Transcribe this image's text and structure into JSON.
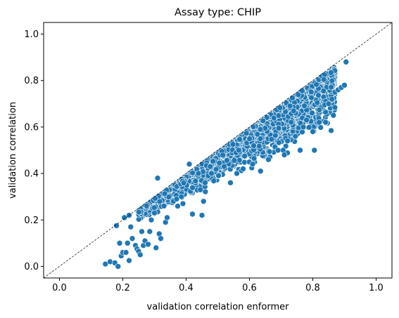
{
  "chart_data": {
    "type": "scatter",
    "title": "Assay type: CHIP",
    "xlabel": "validation correlation enformer",
    "ylabel": "validation correlation",
    "xlim": [
      -0.05,
      1.05
    ],
    "ylim": [
      -0.05,
      1.05
    ],
    "xticks": [
      "0.0",
      "0.2",
      "0.4",
      "0.6",
      "0.8",
      "1.0"
    ],
    "yticks": [
      "0.0",
      "0.2",
      "0.4",
      "0.6",
      "0.8",
      "1.0"
    ],
    "diagonal_reference_line": true,
    "grid": false,
    "marker_color": "#1f77b4",
    "series": [
      {
        "points": [
          [
            0.145,
            0.01
          ],
          [
            0.16,
            0.02
          ],
          [
            0.175,
            0.015
          ],
          [
            0.18,
            0.175
          ],
          [
            0.185,
            0.0
          ],
          [
            0.19,
            0.1
          ],
          [
            0.195,
            0.045
          ],
          [
            0.2,
            0.06
          ],
          [
            0.205,
            0.21
          ],
          [
            0.21,
            0.06
          ],
          [
            0.215,
            0.1
          ],
          [
            0.22,
            0.025
          ],
          [
            0.22,
            0.22
          ],
          [
            0.225,
            0.17
          ],
          [
            0.23,
            0.12
          ],
          [
            0.24,
            0.09
          ],
          [
            0.245,
            0.075
          ],
          [
            0.25,
            0.065
          ],
          [
            0.255,
            0.05
          ],
          [
            0.26,
            0.15
          ],
          [
            0.265,
            0.09
          ],
          [
            0.27,
            0.11
          ],
          [
            0.275,
            0.26
          ],
          [
            0.28,
            0.095
          ],
          [
            0.285,
            0.15
          ],
          [
            0.29,
            0.2
          ],
          [
            0.3,
            0.23
          ],
          [
            0.305,
            0.08
          ],
          [
            0.31,
            0.38
          ],
          [
            0.315,
            0.14
          ],
          [
            0.32,
            0.12
          ],
          [
            0.33,
            0.26
          ],
          [
            0.335,
            0.19
          ],
          [
            0.34,
            0.21
          ],
          [
            0.36,
            0.28
          ],
          [
            0.37,
            0.29
          ],
          [
            0.385,
            0.3
          ],
          [
            0.39,
            0.27
          ],
          [
            0.41,
            0.44
          ],
          [
            0.42,
            0.225
          ],
          [
            0.445,
            0.33
          ],
          [
            0.45,
            0.22
          ],
          [
            0.455,
            0.28
          ],
          [
            0.46,
            0.36
          ],
          [
            0.47,
            0.39
          ],
          [
            0.48,
            0.4
          ],
          [
            0.505,
            0.445
          ],
          [
            0.52,
            0.43
          ],
          [
            0.54,
            0.36
          ],
          [
            0.56,
            0.4
          ],
          [
            0.58,
            0.42
          ],
          [
            0.61,
            0.44
          ],
          [
            0.635,
            0.41
          ],
          [
            0.66,
            0.46
          ],
          [
            0.69,
            0.5
          ],
          [
            0.71,
            0.48
          ],
          [
            0.72,
            0.54
          ],
          [
            0.745,
            0.56
          ],
          [
            0.76,
            0.5
          ],
          [
            0.77,
            0.6
          ],
          [
            0.8,
            0.58
          ],
          [
            0.805,
            0.5
          ],
          [
            0.82,
            0.62
          ],
          [
            0.85,
            0.7
          ],
          [
            0.87,
            0.75
          ],
          [
            0.88,
            0.76
          ],
          [
            0.89,
            0.77
          ],
          [
            0.9,
            0.78
          ],
          [
            0.905,
            0.88
          ]
        ]
      }
    ]
  }
}
